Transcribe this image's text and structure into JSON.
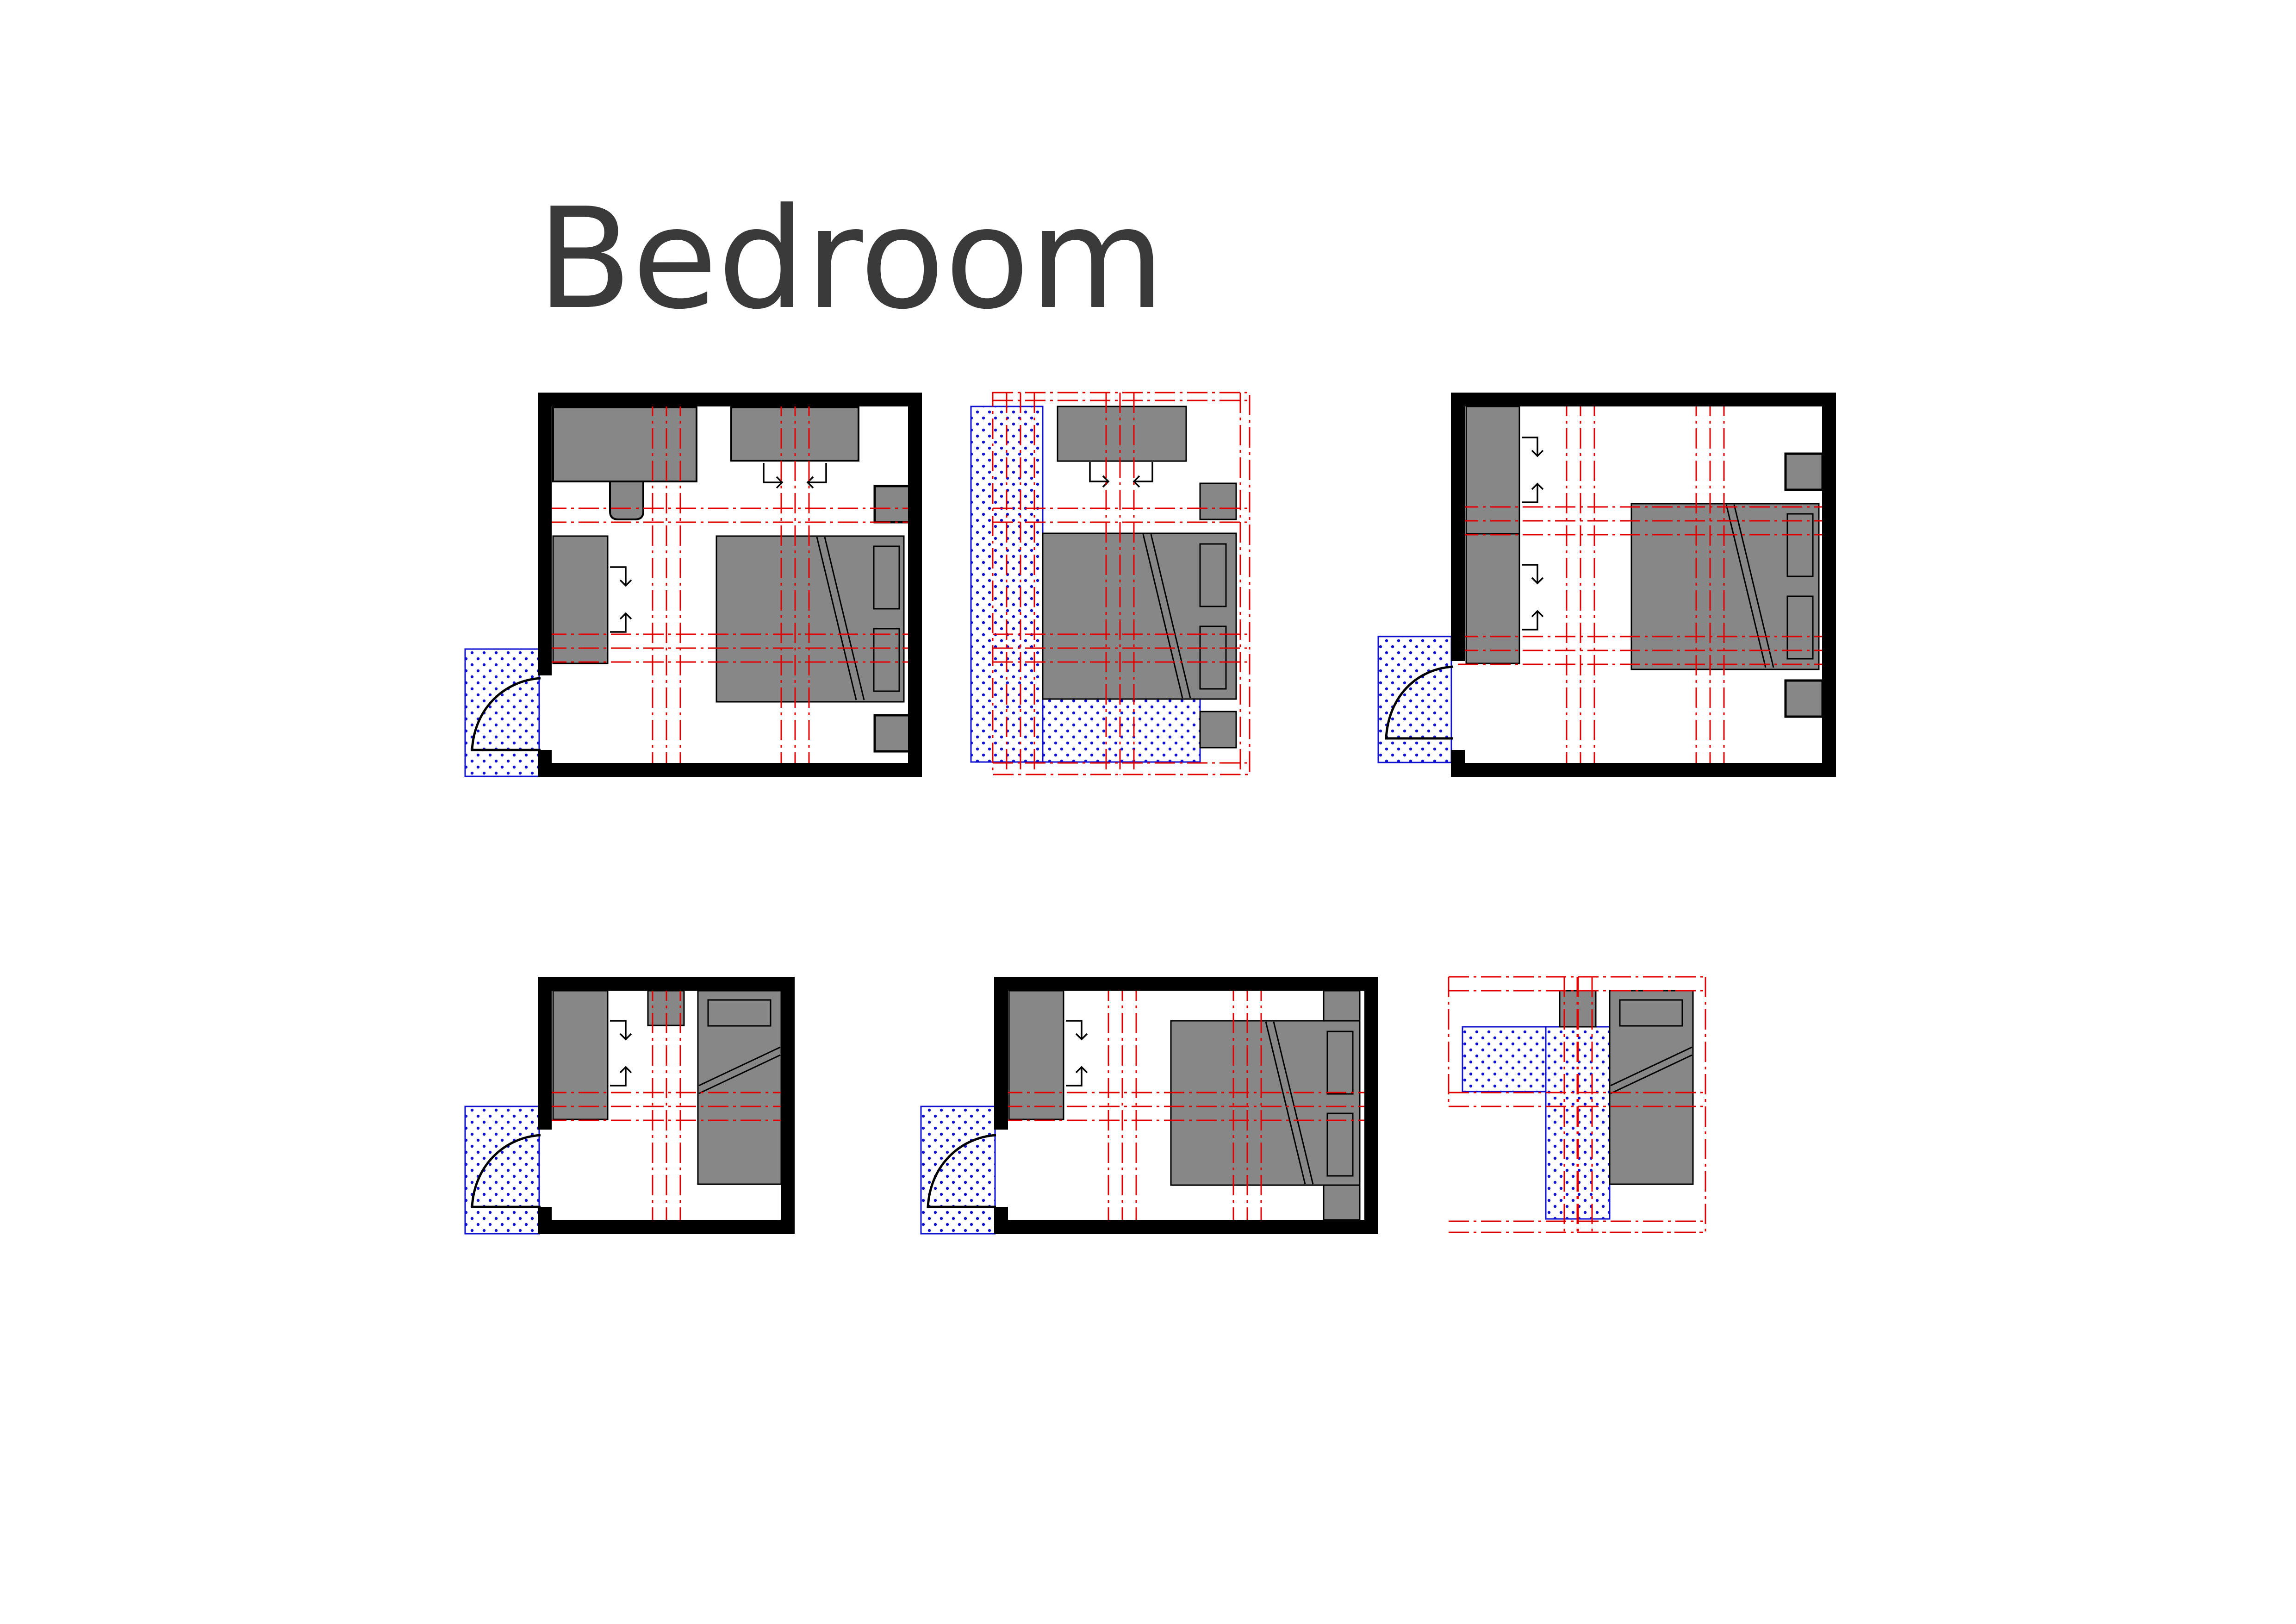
{
  "page": {
    "title": "Bedroom"
  },
  "colors": {
    "wall": "#000000",
    "furniture": "#878787",
    "guide": "#e00000",
    "clearance": "#1010d0",
    "background": "#ffffff"
  },
  "plans": [
    {
      "id": "plan-1",
      "items": [
        "wardrobe",
        "desk",
        "chair",
        "dresser",
        "double-bed",
        "nightstand",
        "nightstand",
        "door"
      ]
    },
    {
      "id": "plan-2",
      "items": [
        "desk",
        "nightstand",
        "double-bed",
        "nightstand",
        "clearance-zone"
      ]
    },
    {
      "id": "plan-3",
      "items": [
        "wardrobe",
        "wardrobe",
        "double-bed",
        "nightstand",
        "nightstand",
        "door"
      ]
    },
    {
      "id": "plan-4",
      "items": [
        "wardrobe",
        "nightstand",
        "single-bed",
        "door"
      ]
    },
    {
      "id": "plan-5",
      "items": [
        "wardrobe",
        "double-bed",
        "headboard-wall",
        "door"
      ]
    },
    {
      "id": "plan-6",
      "items": [
        "nightstand",
        "single-bed",
        "clearance-zone"
      ]
    }
  ],
  "icons": [
    "door-swing-icon",
    "drawer-arrow-icon"
  ]
}
